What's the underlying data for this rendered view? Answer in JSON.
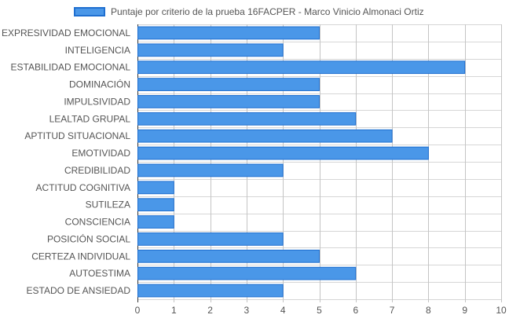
{
  "chart_data": {
    "type": "bar",
    "orientation": "horizontal",
    "title": "",
    "xlabel": "",
    "ylabel": "",
    "categories": [
      "EXPRESIVIDAD EMOCIONAL",
      "INTELIGENCIA",
      "ESTABILIDAD EMOCIONAL",
      "DOMINACIÓN",
      "IMPULSIVIDAD",
      "LEALTAD GRUPAL",
      "APTITUD SITUACIONAL",
      "EMOTIVIDAD",
      "CREDIBILIDAD",
      "ACTITUD COGNITIVA",
      "SUTILEZA",
      "CONSCIENCIA",
      "POSICIÓN SOCIAL",
      "CERTEZA INDIVIDUAL",
      "AUTOESTIMA",
      "ESTADO DE ANSIEDAD"
    ],
    "series": [
      {
        "name": "Puntaje por criterio de la prueba 16FACPER - Marco Vinicio Almonaci Ortiz",
        "values": [
          5,
          4,
          9,
          5,
          5,
          6,
          7,
          8,
          4,
          1,
          1,
          1,
          4,
          5,
          6,
          4
        ]
      }
    ],
    "xlim": [
      0,
      10
    ],
    "xticks": [
      0,
      1,
      2,
      3,
      4,
      5,
      6,
      7,
      8,
      9,
      10
    ],
    "grid": true,
    "legend_position": "top",
    "colors": {
      "bar_fill": "#4a97e8",
      "bar_stroke": "#1f6fd0",
      "grid": "#d6d6d6",
      "grid_major": "#c4c4c4",
      "text": "#555555"
    }
  }
}
